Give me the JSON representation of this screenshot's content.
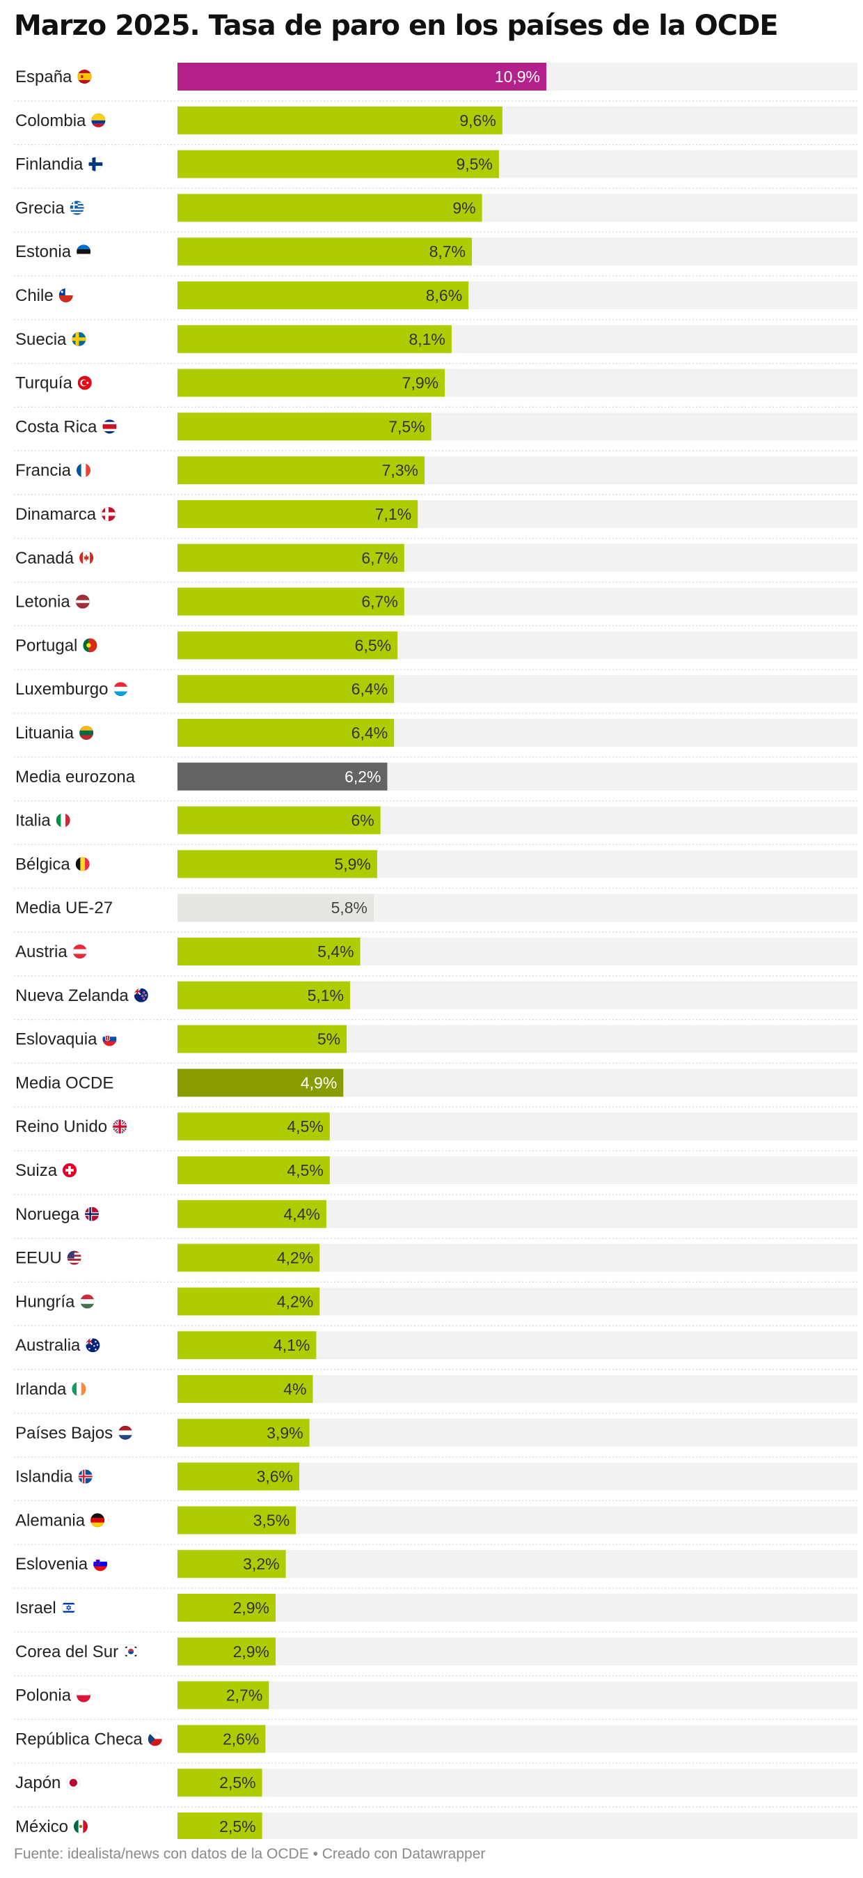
{
  "header": {
    "title": "Marzo 2025. Tasa de paro en los países de la OCDE"
  },
  "footer": {
    "text": "Fuente: idealista/news con datos de la OCDE • Creado con Datawrapper"
  },
  "colors": {
    "highlight": "#b5218a",
    "default_bar": "#afcc00",
    "eurozone": "#636363",
    "eu27": "#e6e6e3",
    "ocde": "#889c00",
    "track": "#f2f2f2",
    "divider": "#d5d5d5"
  },
  "chart_data": {
    "type": "bar",
    "orientation": "horizontal",
    "title": "Marzo 2025. Tasa de paro en los países de la OCDE",
    "unit": "%",
    "decimal_separator": ",",
    "xlim": [
      0,
      10.9
    ],
    "grid": false,
    "categories": [
      "España",
      "Colombia",
      "Finlandia",
      "Grecia",
      "Estonia",
      "Chile",
      "Suecia",
      "Turquía",
      "Costa Rica",
      "Francia",
      "Dinamarca",
      "Canadá",
      "Letonia",
      "Portugal",
      "Luxemburgo",
      "Lituania",
      "Media eurozona",
      "Italia",
      "Bélgica",
      "Media UE-27",
      "Austria",
      "Nueva Zelanda",
      "Eslovaquia",
      "Media OCDE",
      "Reino Unido",
      "Suiza",
      "Noruega",
      "EEUU",
      "Hungría",
      "Australia",
      "Irlanda",
      "Países Bajos",
      "Islandia",
      "Alemania",
      "Eslovenia",
      "Israel",
      "Corea del Sur",
      "Polonia",
      "República Checa",
      "Japón",
      "México"
    ],
    "values": [
      10.9,
      9.6,
      9.5,
      9,
      8.7,
      8.6,
      8.1,
      7.9,
      7.5,
      7.3,
      7.1,
      6.7,
      6.7,
      6.5,
      6.4,
      6.4,
      6.2,
      6,
      5.9,
      5.8,
      5.4,
      5.1,
      5,
      4.9,
      4.5,
      4.5,
      4.4,
      4.2,
      4.2,
      4.1,
      4,
      3.9,
      3.6,
      3.5,
      3.2,
      2.9,
      2.9,
      2.7,
      2.6,
      2.5,
      2.5
    ],
    "value_labels": [
      "10,9%",
      "9,6%",
      "9,5%",
      "9%",
      "8,7%",
      "8,6%",
      "8,1%",
      "7,9%",
      "7,5%",
      "7,3%",
      "7,1%",
      "6,7%",
      "6,7%",
      "6,5%",
      "6,4%",
      "6,4%",
      "6,2%",
      "6%",
      "5,9%",
      "5,8%",
      "5,4%",
      "5,1%",
      "5%",
      "4,9%",
      "4,5%",
      "4,5%",
      "4,4%",
      "4,2%",
      "4,2%",
      "4,1%",
      "4%",
      "3,9%",
      "3,6%",
      "3,5%",
      "3,2%",
      "2,9%",
      "2,9%",
      "2,7%",
      "2,6%",
      "2,5%",
      "2,5%"
    ],
    "flags": [
      "es-flag-icon",
      "co-flag-icon",
      "fi-flag-icon",
      "gr-flag-icon",
      "ee-flag-icon",
      "cl-flag-icon",
      "se-flag-icon",
      "tr-flag-icon",
      "cr-flag-icon",
      "fr-flag-icon",
      "dk-flag-icon",
      "ca-flag-icon",
      "lv-flag-icon",
      "pt-flag-icon",
      "lu-flag-icon",
      "lt-flag-icon",
      "",
      "it-flag-icon",
      "be-flag-icon",
      "",
      "at-flag-icon",
      "nz-flag-icon",
      "sk-flag-icon",
      "",
      "gb-flag-icon",
      "ch-flag-icon",
      "no-flag-icon",
      "us-flag-icon",
      "hu-flag-icon",
      "au-flag-icon",
      "ie-flag-icon",
      "nl-flag-icon",
      "is-flag-icon",
      "de-flag-icon",
      "si-flag-icon",
      "il-flag-icon",
      "kr-flag-icon",
      "pl-flag-icon",
      "cz-flag-icon",
      "jp-flag-icon",
      "mx-flag-icon"
    ],
    "highlights": {
      "España": "highlight",
      "Media eurozona": "eurozone",
      "Media UE-27": "eu27",
      "Media OCDE": "ocde"
    }
  }
}
